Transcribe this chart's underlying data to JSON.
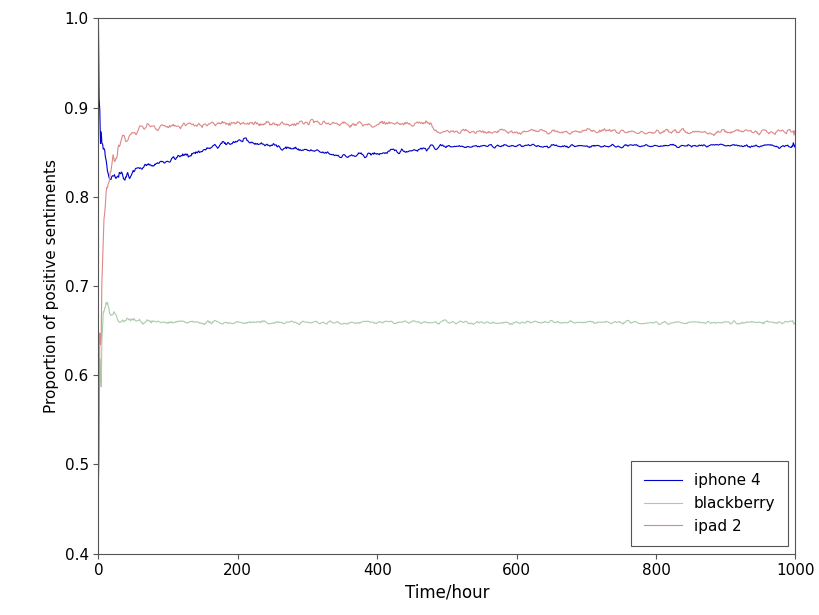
{
  "title": "",
  "xlabel": "Time/hour",
  "ylabel": "Proportion of positive sentiments",
  "xlim": [
    0,
    1000
  ],
  "ylim": [
    0.4,
    1.0
  ],
  "yticks": [
    0.4,
    0.5,
    0.6,
    0.7,
    0.8,
    0.9,
    1.0
  ],
  "xticks": [
    0,
    200,
    400,
    600,
    800,
    1000
  ],
  "lines": {
    "iphone4": {
      "color": "#0000cc",
      "label": "iphone 4"
    },
    "blackberry": {
      "color": "#aaccaa",
      "label": "blackberry"
    },
    "ipad2": {
      "color": "#dd8888",
      "label": "ipad 2"
    }
  },
  "figsize": [
    8.2,
    6.15
  ],
  "dpi": 100
}
